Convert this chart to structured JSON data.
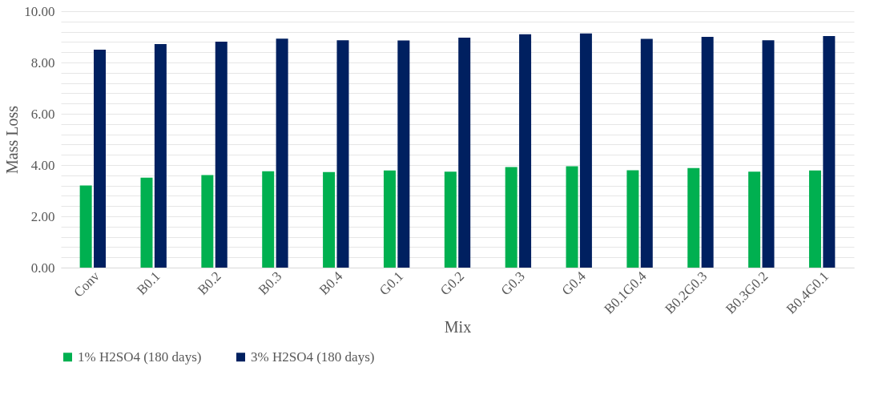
{
  "chart_data": {
    "type": "bar",
    "xlabel": "Mix",
    "ylabel": "Mass Loss",
    "categories": [
      "Conv",
      "B0.1",
      "B0.2",
      "B0.3",
      "B0.4",
      "G0.1",
      "G0.2",
      "G0.3",
      "G0.4",
      "B0.1G0.4",
      "B0.2G0.3",
      "B0.3G0.2",
      "B0.4G0.1"
    ],
    "series": [
      {
        "name": "1% H2SO4 (180 days)",
        "color": "#00b050",
        "values": [
          3.2,
          3.51,
          3.61,
          3.76,
          3.73,
          3.79,
          3.74,
          3.92,
          3.95,
          3.8,
          3.88,
          3.74,
          3.79
        ]
      },
      {
        "name": "3% H2SO4 (180 days)",
        "color": "#002060",
        "values": [
          8.5,
          8.72,
          8.81,
          8.93,
          8.87,
          8.86,
          8.97,
          9.1,
          9.13,
          8.92,
          9.0,
          8.87,
          9.03
        ]
      }
    ],
    "ylim": [
      0,
      10
    ],
    "yticks": [
      {
        "value": 0,
        "label": "0.00"
      },
      {
        "value": 0.4,
        "label": null
      },
      {
        "value": 0.8,
        "label": null
      },
      {
        "value": 1.2,
        "label": null
      },
      {
        "value": 1.6,
        "label": null
      },
      {
        "value": 2,
        "label": "2.00"
      },
      {
        "value": 2.4,
        "label": null
      },
      {
        "value": 2.8,
        "label": null
      },
      {
        "value": 3.2,
        "label": null
      },
      {
        "value": 3.6,
        "label": null
      },
      {
        "value": 4,
        "label": "4.00"
      },
      {
        "value": 4.4,
        "label": null
      },
      {
        "value": 4.8,
        "label": null
      },
      {
        "value": 5.2,
        "label": null
      },
      {
        "value": 5.6,
        "label": null
      },
      {
        "value": 6,
        "label": "6.00"
      },
      {
        "value": 6.4,
        "label": null
      },
      {
        "value": 6.8,
        "label": null
      },
      {
        "value": 7.2,
        "label": null
      },
      {
        "value": 7.6,
        "label": null
      },
      {
        "value": 8,
        "label": "8.00"
      },
      {
        "value": 8.4,
        "label": null
      },
      {
        "value": 8.8,
        "label": null
      },
      {
        "value": 9.2,
        "label": null
      },
      {
        "value": 9.6,
        "label": null
      },
      {
        "value": 10,
        "label": "10.00"
      }
    ],
    "grid": "y",
    "legend": "bottom"
  }
}
